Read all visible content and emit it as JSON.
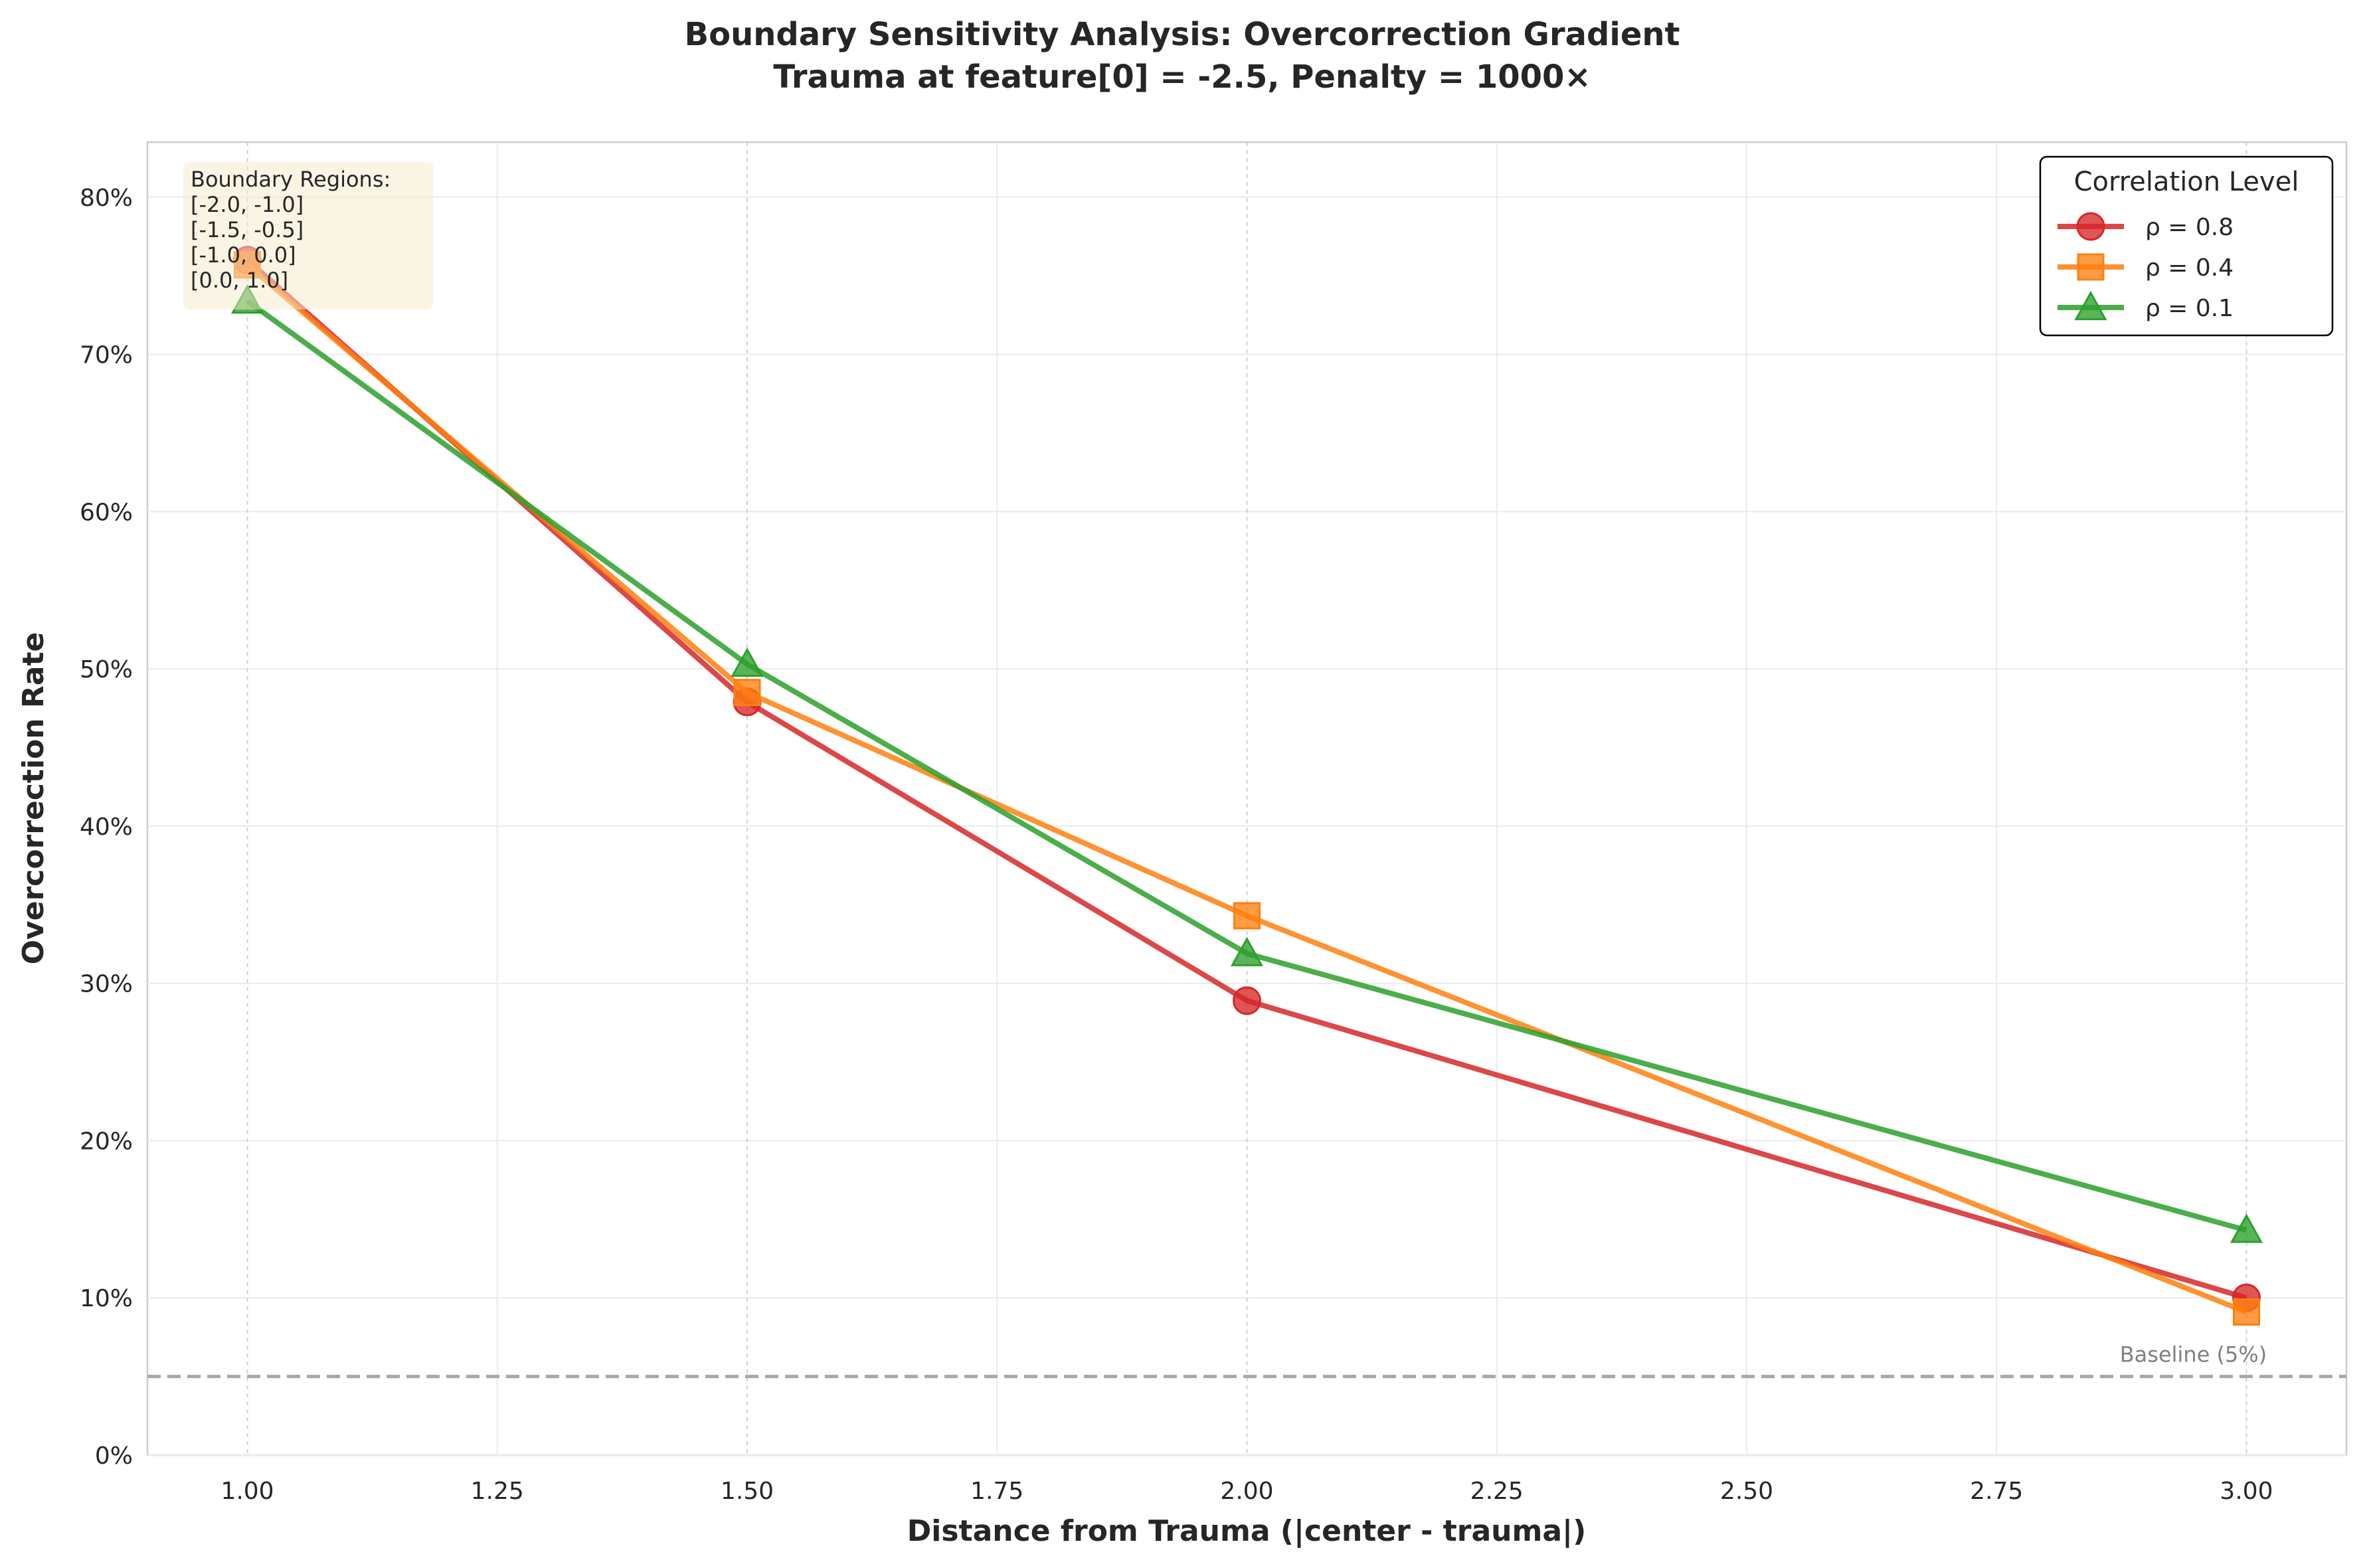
{
  "chart_data": {
    "type": "line",
    "title": "Boundary Sensitivity Analysis: Overcorrection Gradient",
    "subtitle": "Trauma at feature[0] = -2.5, Penalty = 1000×",
    "xlabel": "Distance from Trauma (|center - trauma|)",
    "ylabel": "Overcorrection Rate",
    "xlim": [
      0.9,
      3.1
    ],
    "ylim": [
      0,
      0.835
    ],
    "x_ticks": [
      1.0,
      1.25,
      1.5,
      1.75,
      2.0,
      2.25,
      2.5,
      2.75,
      3.0
    ],
    "x_tick_labels": [
      "1.00",
      "1.25",
      "1.50",
      "1.75",
      "2.00",
      "2.25",
      "2.50",
      "2.75",
      "3.00"
    ],
    "y_ticks": [
      0,
      0.1,
      0.2,
      0.3,
      0.4,
      0.5,
      0.6,
      0.7,
      0.8
    ],
    "y_tick_labels": [
      "0%",
      "10%",
      "20%",
      "30%",
      "40%",
      "50%",
      "60%",
      "70%",
      "80%"
    ],
    "grid": true,
    "x": [
      1.0,
      1.5,
      2.0,
      3.0
    ],
    "series": [
      {
        "name": "ρ = 0.8",
        "color": "#d62728",
        "marker": "circle",
        "values": [
          0.76,
          0.479,
          0.289,
          0.1
        ]
      },
      {
        "name": "ρ = 0.4",
        "color": "#ff7f0e",
        "marker": "square",
        "values": [
          0.757,
          0.485,
          0.343,
          0.091
        ]
      },
      {
        "name": "ρ = 0.1",
        "color": "#2ca02c",
        "marker": "triangle",
        "values": [
          0.734,
          0.503,
          0.319,
          0.143
        ]
      }
    ],
    "baseline": {
      "value": 0.05,
      "label": "Baseline (5%)"
    },
    "legend": {
      "title": "Correlation Level",
      "position": "top-right"
    },
    "annotation": {
      "position": "top-left",
      "lines": [
        "Boundary Regions:",
        "[-2.0, -1.0]",
        "[-1.5, -0.5]",
        "[-1.0, 0.0]",
        "[0.0, 1.0]"
      ]
    }
  }
}
